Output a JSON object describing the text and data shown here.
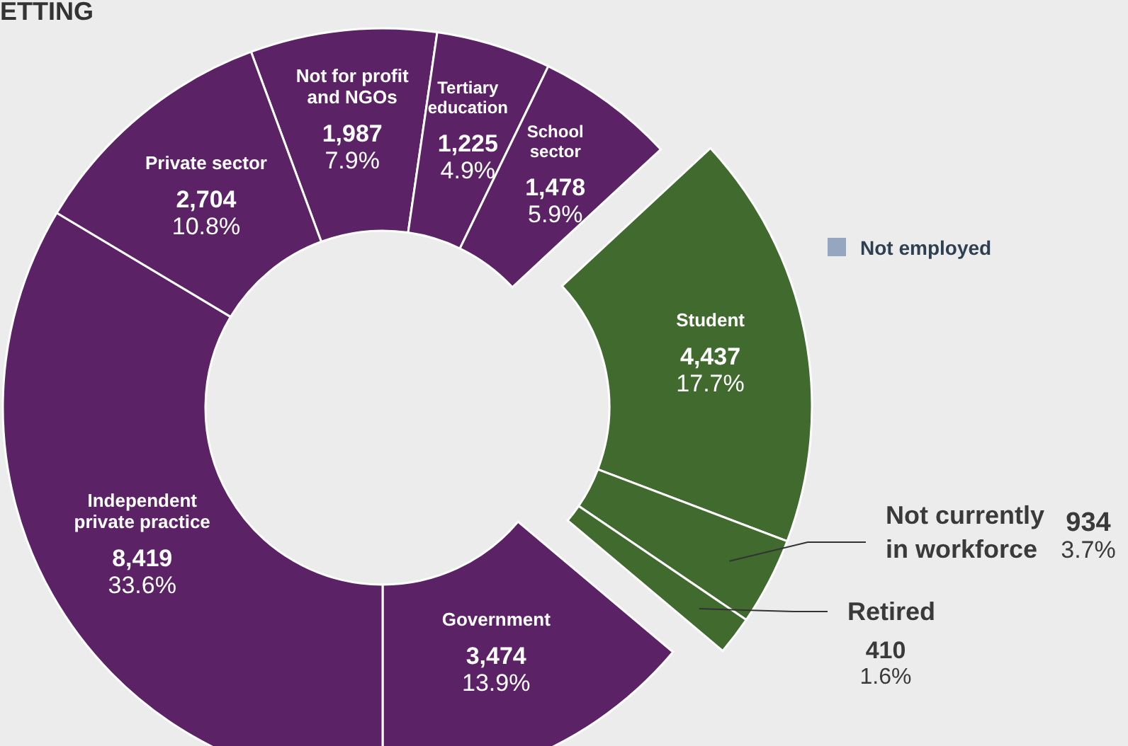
{
  "chart_data": {
    "type": "donut",
    "title": "ETTING",
    "categories": [
      "Not for profit and NGOs",
      "Tertiary education",
      "School sector",
      "Student",
      "Not currently in workforce",
      "Retired",
      "Government",
      "Independent private practice",
      "Private sector"
    ],
    "values": [
      1987,
      1225,
      1478,
      4437,
      934,
      410,
      3474,
      8419,
      2704
    ],
    "value_labels": [
      "1,987\n7.9%",
      "1,225\n4.9%",
      "1,478\n5.9%",
      "4,437\n17.7%",
      "934\n3.7%",
      "410\n1.6%",
      "3,474\n13.9%",
      "8,419\n33.6%",
      "2,704\n10.8%"
    ],
    "colors": [
      "#5b2266",
      "#5b2266",
      "#5b2266",
      "#416a2f",
      "#416a2f",
      "#416a2f",
      "#5b2266",
      "#5b2266",
      "#5b2266"
    ],
    "annotations": [
      "Not employed"
    ]
  }
}
